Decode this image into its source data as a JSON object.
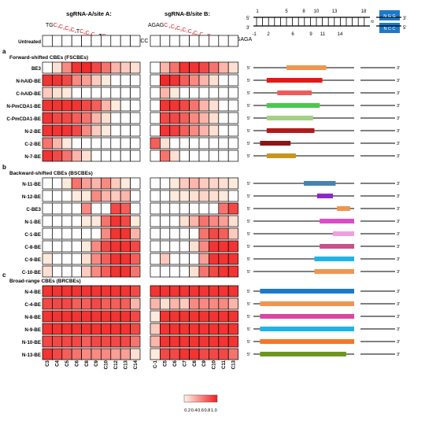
{
  "colors": {
    "heat_low": "#fff5e6",
    "heat_high": "#f01e1e",
    "red_text": "#d7191c",
    "protein_blue": "#1e78c8"
  },
  "header": {
    "siteA_title": "sgRNA-A/site A:",
    "siteB_title": "sgRNA-B/site B:",
    "siteA_seq": [
      {
        "t": "TG",
        "red": false
      },
      {
        "t": "C",
        "red": true,
        "sub": "3"
      },
      {
        "t": "C",
        "red": true,
        "sub": "4"
      },
      {
        "t": "C",
        "red": true,
        "sub": "5"
      },
      {
        "t": "C",
        "red": true,
        "sub": "6"
      },
      {
        "t": "T",
        "red": false
      },
      {
        "t": "C",
        "red": true,
        "sub": "8"
      },
      {
        "t": "C",
        "red": true,
        "sub": "9"
      },
      {
        "t": "C",
        "red": true,
        "sub": "10"
      },
      {
        "t": "T",
        "red": false
      },
      {
        "t": "C",
        "red": true,
        "sub": "12"
      },
      {
        "t": "C",
        "red": true,
        "sub": "13"
      },
      {
        "t": "C",
        "red": true,
        "sub": "14"
      },
      {
        "t": "TGGCCC",
        "red": false
      }
    ],
    "siteB_seq": [
      {
        "t": "AGAG",
        "red": false
      },
      {
        "t": "C",
        "red": true,
        "sub": "-1"
      },
      {
        "t": "C",
        "red": true,
        "sub": "5"
      },
      {
        "t": "C",
        "red": true,
        "sub": "6"
      },
      {
        "t": "C",
        "red": true,
        "sub": "7"
      },
      {
        "t": "C",
        "red": true,
        "sub": "8"
      },
      {
        "t": "C",
        "red": true,
        "sub": "9"
      },
      {
        "t": "C",
        "red": true,
        "sub": "10"
      },
      {
        "t": "C",
        "red": true,
        "sub": "11"
      },
      {
        "t": "T",
        "red": false
      },
      {
        "t": "C",
        "red": true,
        "sub": "13"
      },
      {
        "t": "AAAGAGA",
        "red": false
      }
    ]
  },
  "dna_diagram": {
    "top_positions": [
      "1",
      "5",
      "8",
      "10",
      "13",
      "18"
    ],
    "bottom_positions": [
      "-1",
      "2",
      "6",
      "9",
      "11",
      "14"
    ],
    "five_prime": "5'",
    "three_prime": "3'",
    "pam_top": "N G G",
    "pam_bottom": "N C C"
  },
  "chart_data": {
    "type": "heatmap",
    "colorbar": {
      "ticks": [
        "0.2",
        "0.4",
        "0.6",
        "0.8",
        "1.0"
      ],
      "range": [
        0,
        1
      ]
    },
    "columns_A": [
      "C3",
      "C4",
      "C5",
      "C6",
      "C8",
      "C9",
      "C10",
      "C12",
      "C13",
      "C14"
    ],
    "columns_B": [
      "C-1",
      "C5",
      "C6",
      "C7",
      "C8",
      "C9",
      "C10",
      "C11",
      "C13"
    ],
    "untreated": {
      "label": "Untreated",
      "A": [
        0,
        0,
        0,
        0,
        0,
        0,
        0,
        0,
        0,
        0
      ],
      "B": [
        0,
        0,
        0,
        0,
        0,
        0,
        0,
        0,
        0
      ]
    },
    "sections": [
      {
        "letter": "a",
        "title": "Forward-shifted CBEs (FSCBEs)",
        "rows": [
          {
            "label": "BE3",
            "A": [
              0,
              0.1,
              0.5,
              0.9,
              0.95,
              0.8,
              0.6,
              0.3,
              0.2,
              0.1
            ],
            "B": [
              0,
              0.3,
              0.6,
              0.9,
              0.9,
              0.8,
              0.6,
              0.3,
              0.1
            ],
            "bar": {
              "start": 0.25,
              "end": 0.55,
              "color": "#ee9650"
            }
          },
          {
            "label": "N-hAID-BE",
            "A": [
              0.9,
              0.9,
              0.8,
              0.5,
              0.4,
              0.2,
              0.05,
              0,
              0,
              0
            ],
            "B": [
              0,
              0.95,
              0.9,
              0.7,
              0.5,
              0.3,
              0.1,
              0,
              0
            ],
            "bar": {
              "start": 0.1,
              "end": 0.52,
              "color": "#e61919"
            }
          },
          {
            "label": "C-hAID-BE",
            "A": [
              0.2,
              0.1,
              0.05,
              0,
              0,
              0,
              0,
              0,
              0,
              0
            ],
            "B": [
              0,
              0.3,
              0.05,
              0,
              0,
              0,
              0,
              0,
              0
            ],
            "bar": {
              "start": 0.18,
              "end": 0.44,
              "color": "#f05a5a"
            }
          },
          {
            "label": "N-PmCDA1-BE",
            "A": [
              0.9,
              0.9,
              0.9,
              0.9,
              0.8,
              0.7,
              0.3,
              0.05,
              0,
              0
            ],
            "B": [
              0,
              0.9,
              0.9,
              0.8,
              0.6,
              0.3,
              0.1,
              0,
              0
            ],
            "bar": {
              "start": 0.1,
              "end": 0.5,
              "color": "#4bc84b"
            }
          },
          {
            "label": "C-PmCDA1-BE",
            "A": [
              0.9,
              0.8,
              0.8,
              0.7,
              0.6,
              0.3,
              0.1,
              0,
              0,
              0
            ],
            "B": [
              0,
              0.8,
              0.8,
              0.7,
              0.5,
              0.3,
              0.1,
              0,
              0
            ],
            "bar": {
              "start": 0.1,
              "end": 0.45,
              "color": "#a5d282"
            }
          },
          {
            "label": "N-2-BE",
            "A": [
              0.9,
              0.9,
              0.9,
              0.8,
              0.5,
              0.2,
              0.05,
              0,
              0,
              0
            ],
            "B": [
              0,
              0.9,
              0.85,
              0.7,
              0.5,
              0.3,
              0.1,
              0,
              0
            ],
            "bar": {
              "start": 0.1,
              "end": 0.46,
              "color": "#b41919"
            }
          },
          {
            "label": "C-2-BE",
            "A": [
              0.6,
              0.3,
              0.05,
              0,
              0,
              0,
              0,
              0,
              0,
              0
            ],
            "B": [
              0.7,
              0.1,
              0,
              0,
              0,
              0,
              0,
              0,
              0
            ],
            "bar": {
              "start": 0.05,
              "end": 0.28,
              "color": "#8c1414"
            }
          },
          {
            "label": "N-7-BE",
            "A": [
              0.9,
              0.8,
              0.6,
              0.3,
              0.1,
              0,
              0,
              0,
              0,
              0
            ],
            "B": [
              0,
              0.6,
              0.1,
              0,
              0,
              0,
              0,
              0,
              0
            ],
            "bar": {
              "start": 0.1,
              "end": 0.32,
              "color": "#c8961e"
            }
          }
        ]
      },
      {
        "letter": "b",
        "title": "Backward-shifted CBEs (BSCBEs)",
        "rows": [
          {
            "label": "N-11-BE",
            "A": [
              0,
              0,
              0.05,
              0.6,
              0.4,
              0.3,
              0.5,
              0.2,
              0.05,
              0
            ],
            "B": [
              0,
              0,
              0.05,
              0.2,
              0.3,
              0.2,
              0.15,
              0.1,
              0.05
            ],
            "bar": {
              "start": 0.38,
              "end": 0.62,
              "color": "#4682b4"
            }
          },
          {
            "label": "N-12-BE",
            "A": [
              0,
              0,
              0,
              0.05,
              0.05,
              0.5,
              0.3,
              0.2,
              0.3,
              0
            ],
            "B": [
              0,
              0,
              0.05,
              0.05,
              0.1,
              0.15,
              0.1,
              0.05,
              0
            ],
            "bar": {
              "start": 0.48,
              "end": 0.6,
              "color": "#8c28c8"
            }
          },
          {
            "label": "C-BE3",
            "A": [
              0,
              0,
              0,
              0,
              0.5,
              0,
              0,
              0.8,
              0.7,
              0
            ],
            "B": [
              0,
              0,
              0,
              0,
              0,
              0,
              0,
              0.6,
              0.8
            ],
            "bar": {
              "start": 0.63,
              "end": 0.73,
              "color": "#ee9650"
            }
          },
          {
            "label": "N-1-BE",
            "A": [
              0,
              0,
              0,
              0,
              0.05,
              0.05,
              0.6,
              0.9,
              0.8,
              0.05
            ],
            "B": [
              0,
              0,
              0,
              0.1,
              0.3,
              0.6,
              0.5,
              0.4,
              0.1
            ],
            "bar": {
              "start": 0.5,
              "end": 0.76,
              "color": "#dc4bc8"
            }
          },
          {
            "label": "C-1-BE",
            "A": [
              0,
              0,
              0,
              0,
              0,
              0,
              0.5,
              0.9,
              0.9,
              0.3
            ],
            "B": [
              0,
              0,
              0,
              0,
              0,
              0.6,
              0.8,
              0.7,
              0.2
            ],
            "bar": {
              "start": 0.6,
              "end": 0.76,
              "color": "#f0a0dc"
            }
          },
          {
            "label": "C-8-BE",
            "A": [
              0,
              0,
              0,
              0,
              0.05,
              0.5,
              0.8,
              0.9,
              0.9,
              0.8
            ],
            "B": [
              0,
              0,
              0,
              0,
              0.1,
              0.5,
              0.9,
              0.9,
              0.9
            ],
            "bar": {
              "start": 0.5,
              "end": 0.76,
              "color": "#c8508c"
            }
          },
          {
            "label": "C-9-BE",
            "A": [
              0.05,
              0,
              0,
              0,
              0.1,
              0.5,
              0.7,
              0.9,
              0.9,
              0.7
            ],
            "B": [
              0,
              0.2,
              0,
              0,
              0,
              0.4,
              0.9,
              0.9,
              0.9
            ],
            "bar": {
              "start": 0.46,
              "end": 0.76,
              "color": "#1eb4e6"
            }
          },
          {
            "label": "C-10-BE",
            "A": [
              0.1,
              0,
              0,
              0,
              0.2,
              0.5,
              0.7,
              0.9,
              0.9,
              0.6
            ],
            "B": [
              0,
              0,
              0,
              0,
              0.1,
              0.6,
              0.8,
              0.9,
              0.9
            ],
            "bar": {
              "start": 0.46,
              "end": 0.76,
              "color": "#ee9650"
            }
          }
        ]
      },
      {
        "letter": "c",
        "title": "Broad-range CBEs (BRCBEs)",
        "rows": [
          {
            "label": "N-4-BE",
            "A": [
              0.9,
              0.9,
              0.9,
              0.9,
              0.9,
              0.9,
              0.9,
              0.9,
              0.9,
              0.8
            ],
            "B": [
              0.9,
              0.9,
              0.9,
              0.9,
              0.9,
              0.9,
              0.9,
              0.9,
              0.9
            ],
            "bar": {
              "start": 0.05,
              "end": 0.76,
              "color": "#1e78c8"
            }
          },
          {
            "label": "C-4-BE",
            "A": [
              0.8,
              0.8,
              0.8,
              0.7,
              0.7,
              0.8,
              0.7,
              0.7,
              0.7,
              0.3
            ],
            "B": [
              0.3,
              0.1,
              0.3,
              0.2,
              0.5,
              0.5,
              0.5,
              0.5,
              0.3
            ],
            "bar": {
              "start": 0.05,
              "end": 0.76,
              "color": "#ee9650"
            }
          },
          {
            "label": "N-8-BE",
            "A": [
              0.9,
              0.9,
              0.9,
              0.9,
              0.9,
              0.9,
              0.9,
              0.9,
              0.9,
              0.8
            ],
            "B": [
              0.05,
              0.9,
              0.9,
              0.9,
              0.9,
              0.9,
              0.9,
              0.9,
              0.9
            ],
            "bar": {
              "start": 0.05,
              "end": 0.76,
              "color": "#dc46a0"
            }
          },
          {
            "label": "N-9-BE",
            "A": [
              0.9,
              0.9,
              0.9,
              0.9,
              0.9,
              0.9,
              0.9,
              0.9,
              0.9,
              0.8
            ],
            "B": [
              0.2,
              0.9,
              0.9,
              0.9,
              0.9,
              0.9,
              0.9,
              0.9,
              0.9
            ],
            "bar": {
              "start": 0.05,
              "end": 0.76,
              "color": "#1eb4e6"
            }
          },
          {
            "label": "N-10-BE",
            "A": [
              0.8,
              0.8,
              0.8,
              0.8,
              0.7,
              0.8,
              0.8,
              0.8,
              0.8,
              0.6
            ],
            "B": [
              0.3,
              0.9,
              0.9,
              0.9,
              0.9,
              0.9,
              0.9,
              0.9,
              0.9
            ],
            "bar": {
              "start": 0.05,
              "end": 0.76,
              "color": "#f07828"
            }
          },
          {
            "label": "N-13-BE",
            "A": [
              0.9,
              0.8,
              0.7,
              0.6,
              0.5,
              0.5,
              0.5,
              0.4,
              0.4,
              0.1
            ],
            "B": [
              0.05,
              0.8,
              0.8,
              0.9,
              0.9,
              0.8,
              0.8,
              0.8,
              0.6
            ],
            "bar": {
              "start": 0.05,
              "end": 0.7,
              "color": "#6e961e"
            }
          }
        ]
      }
    ]
  }
}
